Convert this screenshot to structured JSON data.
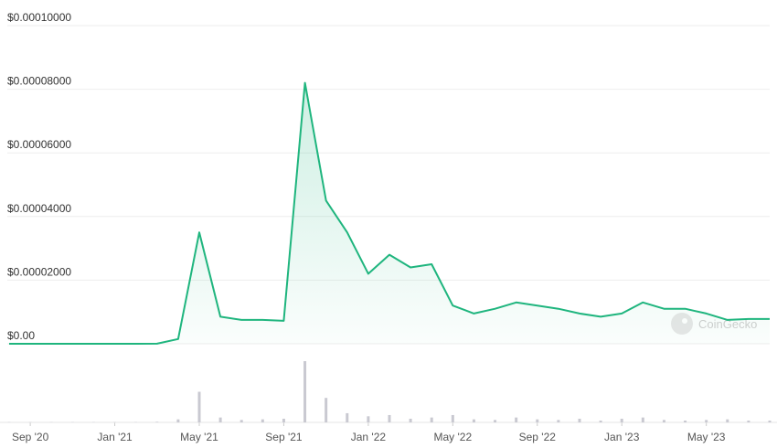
{
  "chart_data": {
    "type": "line",
    "x": [
      "2020-08",
      "2020-09",
      "2020-10",
      "2020-11",
      "2020-12",
      "2021-01",
      "2021-02",
      "2021-03",
      "2021-04",
      "2021-05",
      "2021-06",
      "2021-07",
      "2021-08",
      "2021-09",
      "2021-10",
      "2021-11",
      "2021-12",
      "2022-01",
      "2022-02",
      "2022-03",
      "2022-04",
      "2022-05",
      "2022-06",
      "2022-07",
      "2022-08",
      "2022-09",
      "2022-10",
      "2022-11",
      "2022-12",
      "2023-01",
      "2023-02",
      "2023-03",
      "2023-04",
      "2023-05",
      "2023-06",
      "2023-07",
      "2023-08"
    ],
    "series": [
      {
        "color": "#1fb57e",
        "values": [
          1e-08,
          1e-08,
          1e-08,
          1e-08,
          1e-08,
          1e-08,
          1e-08,
          2e-08,
          1.5e-06,
          3.5e-05,
          8.5e-06,
          7.5e-06,
          7.5e-06,
          7.2e-06,
          8.2e-05,
          4.5e-05,
          3.5e-05,
          2.2e-05,
          2.8e-05,
          2.4e-05,
          2.5e-05,
          1.2e-05,
          9.5e-06,
          1.1e-05,
          1.3e-05,
          1.2e-05,
          1.1e-05,
          9.5e-06,
          8.5e-06,
          9.5e-06,
          1.3e-05,
          1.1e-05,
          1.1e-05,
          9.5e-06,
          7.5e-06,
          7.8e-06,
          7.8e-06
        ]
      }
    ],
    "volume": {
      "color": "#c9c9d1",
      "ylim": [
        0,
        100
      ],
      "values": [
        0.5,
        0.5,
        0.5,
        0.5,
        0.5,
        0.5,
        0.5,
        1,
        5,
        50,
        8,
        4,
        5,
        6,
        100,
        40,
        15,
        10,
        12,
        6,
        8,
        12,
        5,
        4,
        8,
        5,
        4,
        6,
        3,
        6,
        8,
        4,
        3,
        4,
        5,
        3,
        3
      ]
    },
    "xlim": [
      "2020-08",
      "2023-08"
    ],
    "xticks": [
      {
        "value": "2020-09",
        "label": "Sep '20"
      },
      {
        "value": "2021-01",
        "label": "Jan '21"
      },
      {
        "value": "2021-05",
        "label": "May '21"
      },
      {
        "value": "2021-09",
        "label": "Sep '21"
      },
      {
        "value": "2022-01",
        "label": "Jan '22"
      },
      {
        "value": "2022-05",
        "label": "May '22"
      },
      {
        "value": "2022-09",
        "label": "Sep '22"
      },
      {
        "value": "2023-01",
        "label": "Jan '23"
      },
      {
        "value": "2023-05",
        "label": "May '23"
      }
    ],
    "ylim": [
      0,
      0.0001
    ],
    "yticks": [
      {
        "value": 0,
        "label": "$0.00"
      },
      {
        "value": 2e-05,
        "label": "$0.00002000"
      },
      {
        "value": 4e-05,
        "label": "$0.00004000"
      },
      {
        "value": 6e-05,
        "label": "$0.00006000"
      },
      {
        "value": 8e-05,
        "label": "$0.00008000"
      },
      {
        "value": 0.0001,
        "label": "$0.00010000"
      }
    ],
    "grid": true,
    "watermark": "CoinGecko"
  }
}
